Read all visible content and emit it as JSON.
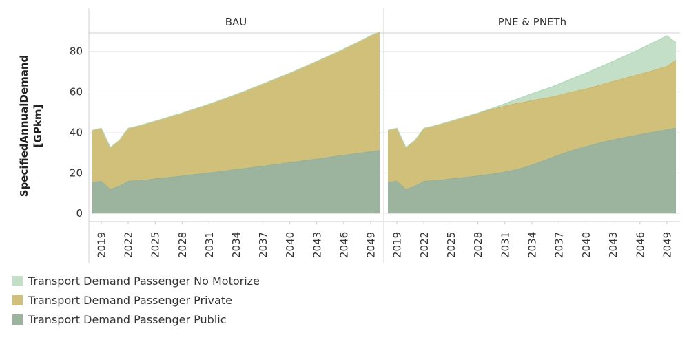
{
  "chart_data": {
    "type": "area",
    "ylabel": [
      "SpecifiedAnnualDemand",
      "[GPkm]"
    ],
    "ylim": [
      -4,
      89
    ],
    "yticks": [
      0,
      20,
      40,
      60,
      80
    ],
    "x": [
      2018,
      2019,
      2020,
      2021,
      2022,
      2023,
      2024,
      2025,
      2026,
      2027,
      2028,
      2029,
      2030,
      2031,
      2032,
      2033,
      2034,
      2035,
      2036,
      2037,
      2038,
      2039,
      2040,
      2041,
      2042,
      2043,
      2044,
      2045,
      2046,
      2047,
      2048,
      2049,
      2050
    ],
    "xticks": [
      2019,
      2022,
      2025,
      2028,
      2031,
      2034,
      2037,
      2040,
      2043,
      2046,
      2049
    ],
    "stacking": "stacked",
    "legend": {
      "position": "bottom-left"
    },
    "colors": {
      "Transport Demand Passenger No Motorize": "#c3dfc8",
      "Transport Demand Passenger Private": "#d1c07a",
      "Transport Demand Passenger Public": "#9cb49e"
    },
    "panels": [
      {
        "title": "BAU",
        "series": [
          {
            "name": "Transport Demand Passenger Public",
            "values": [
              15.5,
              16,
              12,
              13.5,
              16,
              16.3,
              16.6,
              17.2,
              17.6,
              18.1,
              18.6,
              19.1,
              19.6,
              20.1,
              20.6,
              21.2,
              21.8,
              22.3,
              22.9,
              23.4,
              24,
              24.6,
              25.2,
              25.8,
              26.4,
              27,
              27.6,
              28.2,
              28.8,
              29.4,
              30,
              30.6,
              31.2
            ]
          },
          {
            "name": "Transport Demand Passenger Private",
            "values": [
              25.5,
              26,
              20.5,
              22.5,
              26,
              26.7,
              27.6,
              28.3,
              29.2,
              30.1,
              30.9,
              31.9,
              32.8,
              33.8,
              34.8,
              35.8,
              36.9,
              38,
              39.2,
              40.4,
              41.6,
              42.8,
              44,
              45.3,
              46.6,
              48,
              49.4,
              50.8,
              52.3,
              53.8,
              55.4,
              57,
              58.3
            ]
          },
          {
            "name": "Transport Demand Passenger No Motorize",
            "values": [
              0,
              0,
              0,
              0,
              0,
              0,
              0,
              0,
              0,
              0,
              0,
              0,
              0,
              0,
              0,
              0,
              0,
              0,
              0,
              0,
              0,
              0,
              0,
              0,
              0,
              0,
              0,
              0,
              0,
              0,
              0,
              0,
              0
            ]
          }
        ]
      },
      {
        "title": "PNE & PNETh",
        "series": [
          {
            "name": "Transport Demand Passenger Public",
            "values": [
              15.5,
              16,
              12,
              13.5,
              16,
              16.3,
              16.6,
              17.2,
              17.6,
              18.1,
              18.6,
              19.2,
              19.8,
              20.5,
              21.5,
              22.6,
              24,
              25.6,
              27.3,
              28.9,
              30.5,
              31.9,
              33.1,
              34.3,
              35.4,
              36.4,
              37.3,
              38.2,
              39,
              39.8,
              40.6,
              41.4,
              42.2
            ]
          },
          {
            "name": "Transport Demand Passenger Private",
            "values": [
              25.5,
              26,
              20.5,
              22.5,
              26,
              26.7,
              27.6,
              28.3,
              29.2,
              30.1,
              30.8,
              31.5,
              32.1,
              32.6,
              32.6,
              32.3,
              31.8,
              31,
              30.1,
              29.5,
              29.1,
              28.7,
              28.4,
              28.4,
              28.6,
              28.8,
              29.1,
              29.4,
              29.8,
              30.2,
              30.7,
              31.2,
              33.5
            ]
          },
          {
            "name": "Transport Demand Passenger No Motorize",
            "values": [
              0,
              0,
              0,
              0,
              0,
              0,
              0,
              0,
              0,
              0,
              0.1,
              0.3,
              0.6,
              1,
              1.7,
              2.5,
              3.3,
              4,
              4.7,
              5.4,
              6,
              6.8,
              7.7,
              8.4,
              9,
              9.8,
              10.6,
              11.4,
              12.3,
              13.2,
              14.1,
              15,
              8.5
            ]
          }
        ]
      }
    ]
  },
  "legend_items": [
    {
      "label": "Transport Demand Passenger No Motorize",
      "color": "#c3dfc8"
    },
    {
      "label": "Transport Demand Passenger Private",
      "color": "#d1c07a"
    },
    {
      "label": "Transport Demand Passenger Public",
      "color": "#9cb49e"
    }
  ]
}
